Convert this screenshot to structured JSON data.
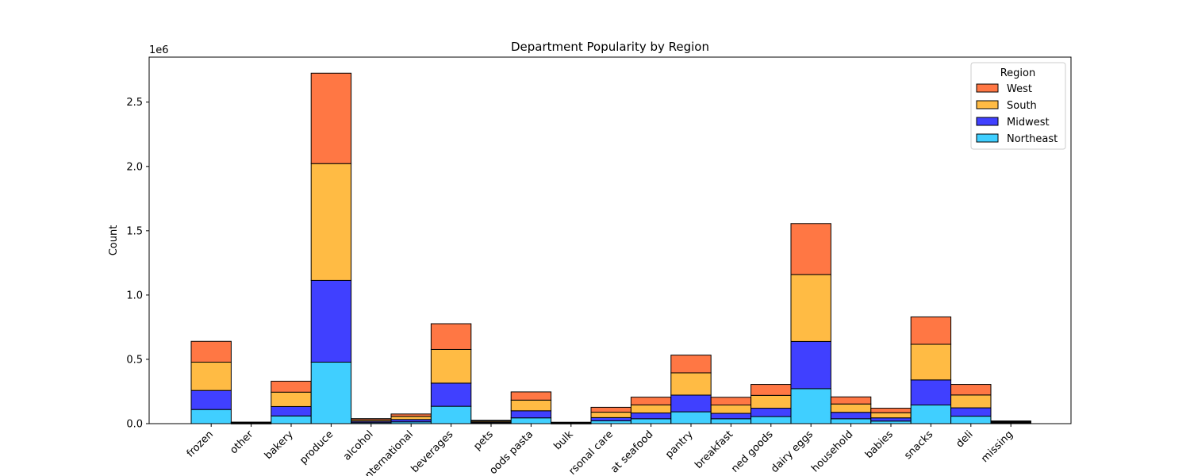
{
  "chart_data": {
    "type": "bar",
    "stacked": true,
    "title": "Department Popularity by Region",
    "xlabel": "",
    "ylabel": "Count",
    "y_offset_label": "1e6",
    "y_scale": 1000000,
    "ylim": [
      0,
      2850000
    ],
    "yticks": [
      0,
      500000,
      1000000,
      1500000,
      2000000,
      2500000
    ],
    "ytick_labels": [
      "0.0",
      "0.5",
      "1.0",
      "1.5",
      "2.0",
      "2.5"
    ],
    "grid": false,
    "legend": {
      "title": "Region",
      "placement": "top-right"
    },
    "categories": [
      "frozen",
      "other",
      "bakery",
      "produce",
      "alcohol",
      "international",
      "beverages",
      "pets",
      "dry goods pasta",
      "bulk",
      "personal care",
      "meat seafood",
      "pantry",
      "breakfast",
      "canned goods",
      "dairy eggs",
      "household",
      "babies",
      "snacks",
      "deli",
      "missing"
    ],
    "category_tick_labels": [
      "frozen",
      "other",
      "bakery",
      "produce",
      "alcohol",
      "nternational",
      "beverages",
      "pets",
      "oods pasta",
      "bulk",
      "rsonal care",
      "at seafood",
      "pantry",
      "breakfast",
      "ned goods",
      "dairy eggs",
      "household",
      "babies",
      "snacks",
      "deli",
      "missing"
    ],
    "series": [
      {
        "name": "Northeast",
        "color": "#40cfff",
        "values": [
          110000,
          3000,
          60000,
          478000,
          8000,
          14000,
          135000,
          6000,
          45000,
          3000,
          22000,
          38000,
          92000,
          38000,
          55000,
          272000,
          38000,
          20000,
          145000,
          58000,
          5000
        ]
      },
      {
        "name": "Midwest",
        "color": "#4040ff",
        "values": [
          148000,
          3000,
          73000,
          636000,
          10000,
          18000,
          180000,
          7000,
          55000,
          3000,
          25000,
          45000,
          130000,
          42000,
          65000,
          367000,
          50000,
          25000,
          195000,
          65000,
          5000
        ]
      },
      {
        "name": "South",
        "color": "#ffbb44",
        "values": [
          220000,
          3000,
          112000,
          908000,
          11000,
          25000,
          262000,
          8000,
          83000,
          3000,
          42000,
          63000,
          173000,
          65000,
          100000,
          520000,
          65000,
          40000,
          277000,
          100000,
          6000
        ]
      },
      {
        "name": "West",
        "color": "#ff7744",
        "values": [
          162000,
          3000,
          85000,
          703000,
          10000,
          18000,
          200000,
          5000,
          64000,
          2000,
          38000,
          60000,
          138000,
          60000,
          85000,
          397000,
          55000,
          35000,
          213000,
          82000,
          5000
        ]
      }
    ],
    "legend_order": [
      "West",
      "South",
      "Midwest",
      "Northeast"
    ]
  }
}
